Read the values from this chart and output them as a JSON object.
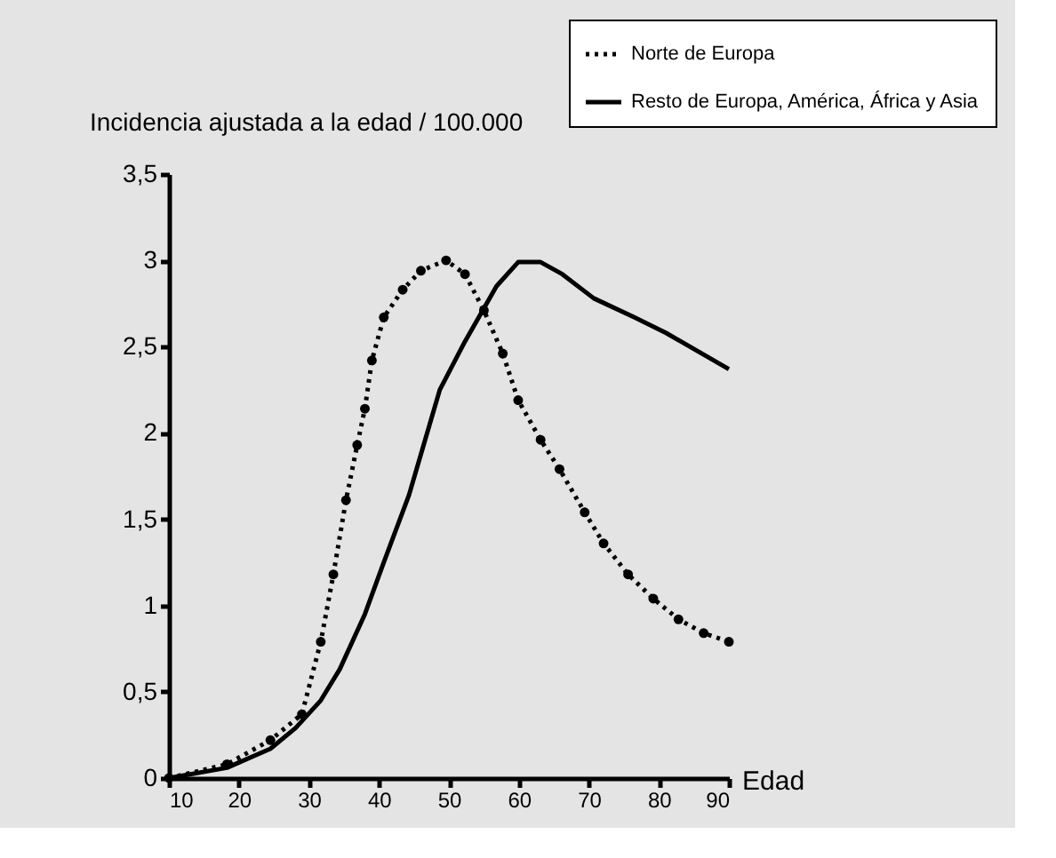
{
  "chart_data": {
    "type": "line",
    "ylabel": "Incidencia ajustada a la edad / 100.000",
    "xlabel": "Edad",
    "xlim": [
      10,
      90
    ],
    "xticks": [
      10,
      20,
      30,
      40,
      50,
      60,
      70,
      80,
      90
    ],
    "ylim": [
      0,
      3.5
    ],
    "yticks": [
      {
        "value": 0,
        "label": "0"
      },
      {
        "value": 0.5,
        "label": "0,5"
      },
      {
        "value": 1,
        "label": "1"
      },
      {
        "value": 1.5,
        "label": "1,5"
      },
      {
        "value": 2,
        "label": "2"
      },
      {
        "value": 2.5,
        "label": "2,5"
      },
      {
        "value": 3,
        "label": "3"
      },
      {
        "value": 3.5,
        "label": "3,5"
      }
    ],
    "grid": false,
    "legend": "top right",
    "series": [
      {
        "name": "Norte de Europa",
        "color": "#000000",
        "marker": "circle",
        "line_style": "dotted",
        "x": [
          10,
          18.3,
          24.5,
          29,
          31.7,
          33.5,
          35.3,
          36.9,
          38,
          39,
          40.7,
          43.4,
          46,
          49.6,
          52.3,
          55,
          57.7,
          59.9,
          63.1,
          65.8,
          69.4,
          72.1,
          75.6,
          79.2,
          82.8,
          86.4,
          90
        ],
        "values": [
          0,
          0.08,
          0.22,
          0.37,
          0.79,
          1.18,
          1.61,
          1.93,
          2.14,
          2.42,
          2.67,
          2.83,
          2.94,
          3.0,
          2.92,
          2.71,
          2.46,
          2.19,
          1.96,
          1.79,
          1.54,
          1.36,
          1.18,
          1.04,
          0.92,
          0.84,
          0.79
        ]
      },
      {
        "name": "Resto de Europa, América, África y Asia",
        "color": "#000000",
        "marker": "none",
        "line_style": "solid",
        "x": [
          10,
          18.3,
          24.5,
          28.1,
          31.7,
          34.4,
          38,
          40.7,
          44.3,
          48.7,
          52.3,
          56.8,
          59.9,
          63.1,
          66.2,
          70.7,
          76.5,
          81,
          90
        ],
        "values": [
          0,
          0.06,
          0.17,
          0.29,
          0.45,
          0.63,
          0.95,
          1.25,
          1.64,
          2.25,
          2.53,
          2.85,
          2.99,
          2.99,
          2.92,
          2.78,
          2.67,
          2.58,
          2.37
        ]
      }
    ]
  }
}
